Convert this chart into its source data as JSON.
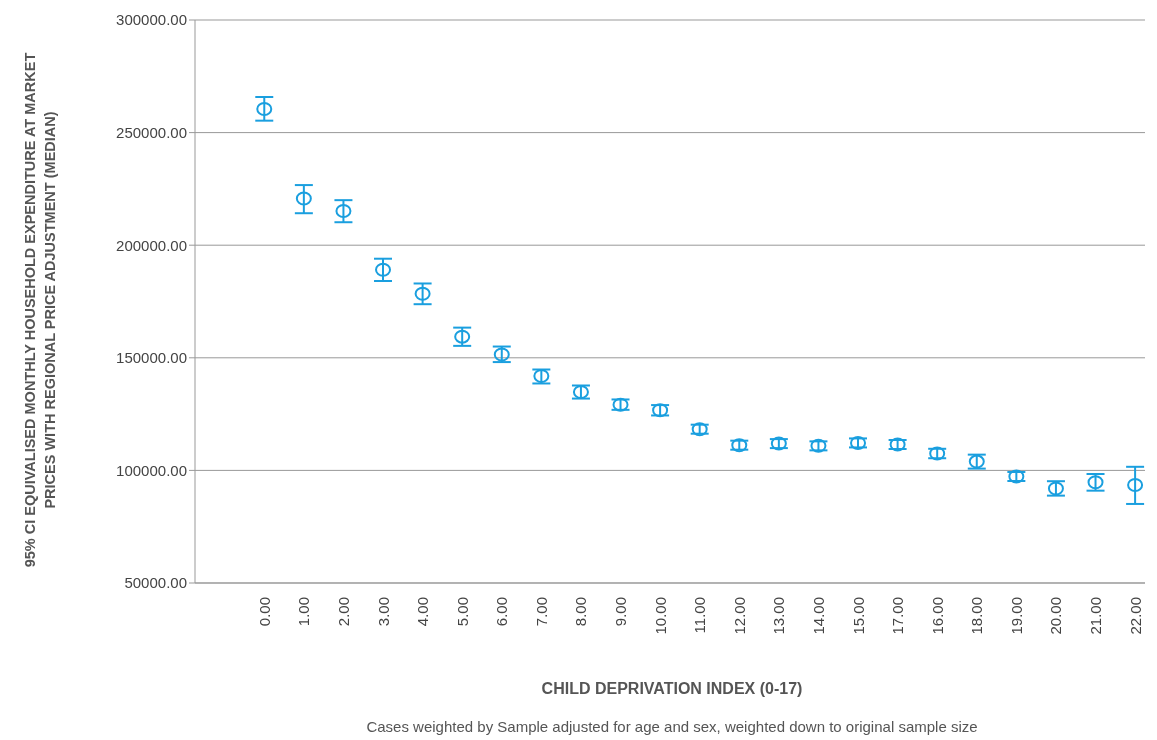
{
  "chart_data": {
    "type": "scatter",
    "ylabel": "95% CI EQUIVALISED MONTHLY HOUSEHOLD EXPENDITURE AT MARKET PRICES WITH REGIONAL PRICE ADJUSTMENT (MEDIAN)",
    "xlabel": "CHILD DEPRIVATION INDEX (0-17)",
    "annotations": [
      "Cases weighted by Sample adjusted for age and sex, weighted down to original sample size"
    ],
    "categories": [
      "0.00",
      "1.00",
      "2.00",
      "3.00",
      "4.00",
      "5.00",
      "6.00",
      "7.00",
      "8.00",
      "9.00",
      "10.00",
      "11.00",
      "12.00",
      "13.00",
      "14.00",
      "15.00",
      "17.00",
      "16.00",
      "18.00",
      "19.00",
      "20.00",
      "21.00",
      "22.00"
    ],
    "series": [
      {
        "color": "#1a9fdf",
        "values": [
          260500,
          220700,
          215200,
          189100,
          178400,
          159400,
          151500,
          141900,
          134800,
          129200,
          126700,
          118300,
          111200,
          111900,
          110900,
          112200,
          111500,
          107500,
          103900,
          97300,
          92000,
          94700,
          93500
        ],
        "errors": [
          [
            255300,
            265800
          ],
          [
            214200,
            226700
          ],
          [
            210200,
            220000
          ],
          [
            184100,
            194000
          ],
          [
            173800,
            183000
          ],
          [
            155300,
            163400
          ],
          [
            148100,
            155000
          ],
          [
            138600,
            144800
          ],
          [
            131900,
            137700
          ],
          [
            126900,
            131500
          ],
          [
            124400,
            129000
          ],
          [
            116300,
            120300
          ],
          [
            109200,
            113200
          ],
          [
            109900,
            113900
          ],
          [
            108900,
            112900
          ],
          [
            110200,
            114200
          ],
          [
            109500,
            113500
          ],
          [
            105400,
            109600
          ],
          [
            100800,
            107000
          ],
          [
            95300,
            99300
          ],
          [
            88800,
            95200
          ],
          [
            91000,
            98400
          ],
          [
            85100,
            101600
          ]
        ]
      }
    ],
    "ylim": [
      50000,
      300000
    ],
    "yticks": [
      {
        "value": 50000,
        "label": "50000.00"
      },
      {
        "value": 100000,
        "label": "100000.00"
      },
      {
        "value": 150000,
        "label": "150000.00"
      },
      {
        "value": 200000,
        "label": "200000.00"
      },
      {
        "value": 250000,
        "label": "250000.00"
      },
      {
        "value": 300000,
        "label": "300000.00"
      }
    ],
    "grid": "y",
    "marker": "circle",
    "legend": false
  }
}
